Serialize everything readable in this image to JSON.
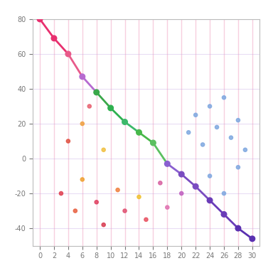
{
  "chart_data": {
    "type": "line",
    "xlim": [
      -1,
      31
    ],
    "xticks": [
      0,
      2,
      4,
      6,
      8,
      10,
      12,
      14,
      16,
      18,
      20,
      22,
      24,
      26,
      28,
      30
    ],
    "ylim": [
      -50,
      80
    ],
    "yticks": [
      -40,
      -20,
      0,
      20,
      40,
      60,
      80
    ],
    "grid": true,
    "series": [
      {
        "type": "line",
        "marker": "o",
        "line_style": "solid",
        "x": [
          0,
          2,
          4,
          6,
          8,
          10,
          12,
          14,
          16,
          18,
          20,
          22,
          24,
          26,
          28,
          30
        ],
        "values": [
          80,
          69,
          60,
          47,
          38,
          29,
          21,
          15,
          9,
          -3,
          -9,
          -16,
          -24,
          -32,
          -40,
          -46
        ],
        "colors": [
          "#e8306f",
          "#e8306f",
          "#e85a8a",
          "#b66ad0",
          "#3aa84a",
          "#2fb04f",
          "#3cb86a",
          "#48b84a",
          "#5cc060",
          "#8a60d0",
          "#7a4cc0",
          "#7a4cc0",
          "#6a3cb8",
          "#6a3cb8",
          "#5a30b0",
          "#5a30b0"
        ]
      },
      {
        "type": "scatter",
        "marker": "o",
        "x": [
          3,
          5,
          6,
          8,
          9,
          11,
          12,
          14,
          15,
          17,
          18,
          20,
          4,
          6,
          9,
          7
        ],
        "values": [
          -20,
          -30,
          -12,
          -25,
          -38,
          -18,
          -30,
          -22,
          -35,
          -14,
          -28,
          -20,
          10,
          20,
          5,
          30
        ],
        "colors": [
          "#e04050",
          "#e86040",
          "#f0a030",
          "#e04060",
          "#d83a50",
          "#f08040",
          "#e05070",
          "#f0c030",
          "#e85060",
          "#d860a0",
          "#e070b0",
          "#c060c0",
          "#e05040",
          "#f0a040",
          "#f0c040",
          "#e86070"
        ]
      },
      {
        "type": "scatter",
        "marker": "o",
        "color": "#7fa8e0",
        "x": [
          21,
          22,
          23,
          24,
          25,
          26,
          27,
          28,
          29,
          24,
          26,
          28
        ],
        "values": [
          15,
          25,
          8,
          30,
          18,
          35,
          12,
          22,
          5,
          -10,
          -20,
          -5
        ]
      }
    ]
  }
}
